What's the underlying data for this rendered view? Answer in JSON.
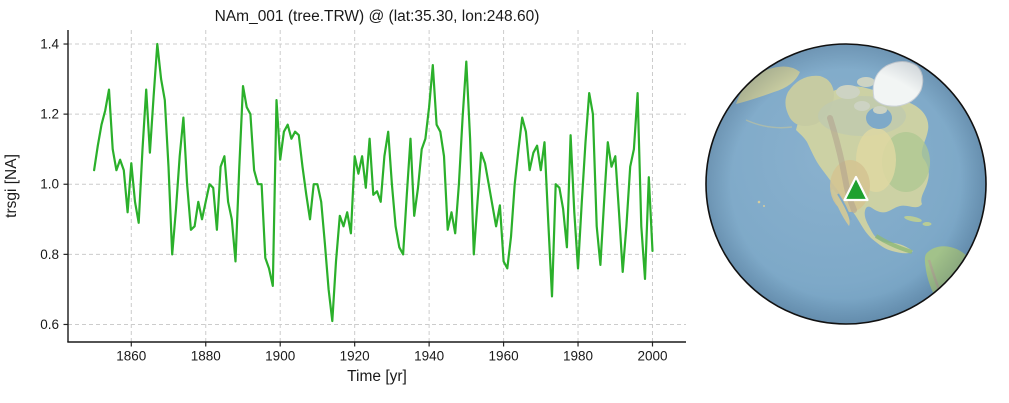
{
  "chart_data": {
    "type": "line",
    "title": "NAm_001 (tree.TRW) @ (lat:35.30, lon:248.60)",
    "xlabel": "Time [yr]",
    "ylabel": "trsgi [NA]",
    "x_start": 1850,
    "x_step": 1,
    "values": [
      1.04,
      1.11,
      1.17,
      1.21,
      1.27,
      1.1,
      1.04,
      1.07,
      1.04,
      0.92,
      1.06,
      0.95,
      0.89,
      1.1,
      1.27,
      1.09,
      1.25,
      1.4,
      1.3,
      1.24,
      1.05,
      0.8,
      0.93,
      1.08,
      1.19,
      1.0,
      0.87,
      0.88,
      0.95,
      0.9,
      0.95,
      1.0,
      0.99,
      0.87,
      1.05,
      1.08,
      0.95,
      0.9,
      0.78,
      1.05,
      1.28,
      1.22,
      1.2,
      1.04,
      1.0,
      1.0,
      0.79,
      0.76,
      0.71,
      1.24,
      1.07,
      1.15,
      1.17,
      1.13,
      1.15,
      1.14,
      1.05,
      0.97,
      0.9,
      1.0,
      1.0,
      0.95,
      0.83,
      0.7,
      0.61,
      0.78,
      0.91,
      0.88,
      0.92,
      0.86,
      1.08,
      1.03,
      1.08,
      0.99,
      1.13,
      0.97,
      0.98,
      0.95,
      1.08,
      1.15,
      1.0,
      0.88,
      0.82,
      0.8,
      0.97,
      1.13,
      0.91,
      0.99,
      1.1,
      1.13,
      1.22,
      1.34,
      1.17,
      1.15,
      1.08,
      0.87,
      0.92,
      0.86,
      1.0,
      1.19,
      1.35,
      1.13,
      0.8,
      0.95,
      1.09,
      1.06,
      1.0,
      0.94,
      0.88,
      0.94,
      0.78,
      0.76,
      0.85,
      1.0,
      1.1,
      1.19,
      1.15,
      1.04,
      1.09,
      1.11,
      1.04,
      1.12,
      0.89,
      0.68,
      1.0,
      0.99,
      0.93,
      0.82,
      1.14,
      0.92,
      0.76,
      0.95,
      1.12,
      1.26,
      1.2,
      0.88,
      0.77,
      0.95,
      1.12,
      1.05,
      1.08,
      0.92,
      0.75,
      0.88,
      1.05,
      1.1,
      1.26,
      0.88,
      0.73,
      1.02,
      0.81
    ],
    "xlim": [
      1843,
      2009
    ],
    "ylim": [
      0.55,
      1.44
    ],
    "xticks": [
      1860,
      1880,
      1900,
      1920,
      1940,
      1960,
      1980,
      2000
    ],
    "yticks": [
      "0.6",
      "0.8",
      "1.0",
      "1.2",
      "1.4"
    ],
    "grid": true,
    "grid_style": "dashed",
    "grid_color": "#cccccc",
    "line_color": "#2bb02b",
    "line_width": 2.2,
    "spine_color": "#262626",
    "text_color": "#1a1a1a"
  },
  "map": {
    "projection": "orthographic-globe",
    "visible_region": "North America / eastern Pacific",
    "marker": {
      "symbol": "triangle-up",
      "lat": "35.30",
      "lon": "248.60",
      "color": "#1fa12f",
      "edge_color": "#ffffff"
    },
    "ocean_color": "#7ea9c8",
    "land_color": "#ccd1a4",
    "ice_color": "#f2f5f4",
    "outline_color": "#111111"
  }
}
